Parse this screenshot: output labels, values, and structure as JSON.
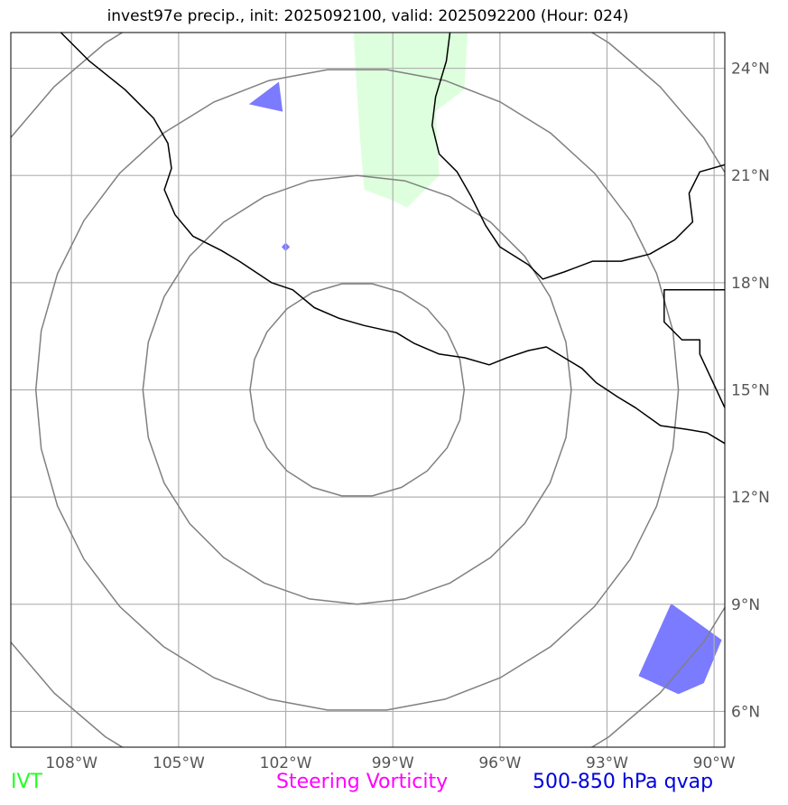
{
  "title": "invest97e precip., init: 2025092100, valid: 2025092200 (Hour: 024)",
  "map": {
    "lon_range": [
      -109.7,
      -89.7
    ],
    "lat_range": [
      5,
      25
    ],
    "center": {
      "lon": -100,
      "lat": 15
    },
    "ring_radii_deg": [
      3,
      6,
      9,
      12
    ],
    "ring_color": "#808080",
    "grid_color": "#b0b0b0",
    "coast_color": "#000000",
    "precip_color": "#ddffdd",
    "qvap_color": "#7b7bff",
    "lon_ticks": [
      {
        "value": -108,
        "label": "108°W"
      },
      {
        "value": -105,
        "label": "105°W"
      },
      {
        "value": -102,
        "label": "102°W"
      },
      {
        "value": -99,
        "label": "99°W"
      },
      {
        "value": -96,
        "label": "96°W"
      },
      {
        "value": -93,
        "label": "93°W"
      },
      {
        "value": -90,
        "label": "90°W"
      }
    ],
    "lat_ticks": [
      {
        "value": 24,
        "label": "24°N"
      },
      {
        "value": 21,
        "label": "21°N"
      },
      {
        "value": 18,
        "label": "18°N"
      },
      {
        "value": 15,
        "label": "15°N"
      },
      {
        "value": 12,
        "label": "12°N"
      },
      {
        "value": 9,
        "label": "9°N"
      },
      {
        "value": 6,
        "label": "6°N"
      }
    ],
    "coastlines": [
      [
        [
          -108.3,
          25
        ],
        [
          -107.5,
          24.2
        ],
        [
          -106.5,
          23.4
        ],
        [
          -105.7,
          22.6
        ],
        [
          -105.3,
          21.9
        ],
        [
          -105.2,
          21.2
        ],
        [
          -105.4,
          20.6
        ],
        [
          -105.1,
          19.9
        ],
        [
          -104.6,
          19.3
        ],
        [
          -103.8,
          18.9
        ],
        [
          -103.3,
          18.6
        ],
        [
          -102.4,
          18.0
        ],
        [
          -101.8,
          17.8
        ],
        [
          -101.2,
          17.3
        ],
        [
          -100.5,
          17.0
        ],
        [
          -99.8,
          16.8
        ],
        [
          -98.9,
          16.6
        ],
        [
          -98.4,
          16.3
        ],
        [
          -97.7,
          16.0
        ],
        [
          -97.0,
          15.9
        ],
        [
          -96.3,
          15.7
        ],
        [
          -95.8,
          15.9
        ],
        [
          -95.2,
          16.1
        ],
        [
          -94.7,
          16.2
        ],
        [
          -94.2,
          15.9
        ],
        [
          -93.7,
          15.6
        ],
        [
          -93.3,
          15.2
        ],
        [
          -92.7,
          14.8
        ],
        [
          -92.2,
          14.5
        ],
        [
          -91.5,
          14.0
        ],
        [
          -90.8,
          13.9
        ],
        [
          -90.2,
          13.8
        ],
        [
          -89.7,
          13.5
        ]
      ],
      [
        [
          -89.7,
          14.5
        ],
        [
          -90.4,
          16.0
        ],
        [
          -90.4,
          16.4
        ],
        [
          -90.9,
          16.4
        ],
        [
          -91.4,
          16.9
        ],
        [
          -91.4,
          17.8
        ],
        [
          -89.7,
          17.8
        ]
      ],
      [
        [
          -89.7,
          21.3
        ],
        [
          -90.4,
          21.1
        ],
        [
          -90.7,
          20.5
        ],
        [
          -90.6,
          19.7
        ],
        [
          -91.1,
          19.2
        ],
        [
          -91.8,
          18.8
        ],
        [
          -92.6,
          18.6
        ],
        [
          -93.4,
          18.6
        ],
        [
          -94.2,
          18.3
        ],
        [
          -94.8,
          18.1
        ],
        [
          -95.2,
          18.5
        ],
        [
          -96.0,
          19.0
        ],
        [
          -96.4,
          19.6
        ],
        [
          -96.8,
          20.4
        ],
        [
          -97.2,
          21.1
        ],
        [
          -97.7,
          21.6
        ],
        [
          -97.9,
          22.4
        ],
        [
          -97.8,
          23.2
        ],
        [
          -97.5,
          24.2
        ],
        [
          -97.4,
          25
        ]
      ]
    ],
    "precip_area": [
      [
        -100.1,
        25
      ],
      [
        -96.9,
        25
      ],
      [
        -97.0,
        23.4
      ],
      [
        -97.8,
        22.8
      ],
      [
        -97.7,
        21.0
      ],
      [
        -98.6,
        20.1
      ],
      [
        -99.0,
        20.3
      ],
      [
        -99.8,
        20.6
      ],
      [
        -99.9,
        21.8
      ],
      [
        -100.0,
        23.3
      ]
    ],
    "qvap_areas": [
      [
        [
          -103.0,
          23.0
        ],
        [
          -102.2,
          23.6
        ],
        [
          -102.1,
          22.8
        ]
      ],
      [
        [
          -102.1,
          19.0
        ],
        [
          -102.0,
          19.1
        ],
        [
          -101.9,
          19.0
        ],
        [
          -102.0,
          18.9
        ]
      ],
      [
        [
          -91.2,
          9.0
        ],
        [
          -89.8,
          8.0
        ],
        [
          -90.3,
          6.8
        ],
        [
          -91.0,
          6.5
        ],
        [
          -92.1,
          7.0
        ]
      ]
    ]
  },
  "legend": {
    "ivt": "IVT",
    "vorticity": "Steering Vorticity",
    "qvap": "500-850 hPa qvap"
  }
}
